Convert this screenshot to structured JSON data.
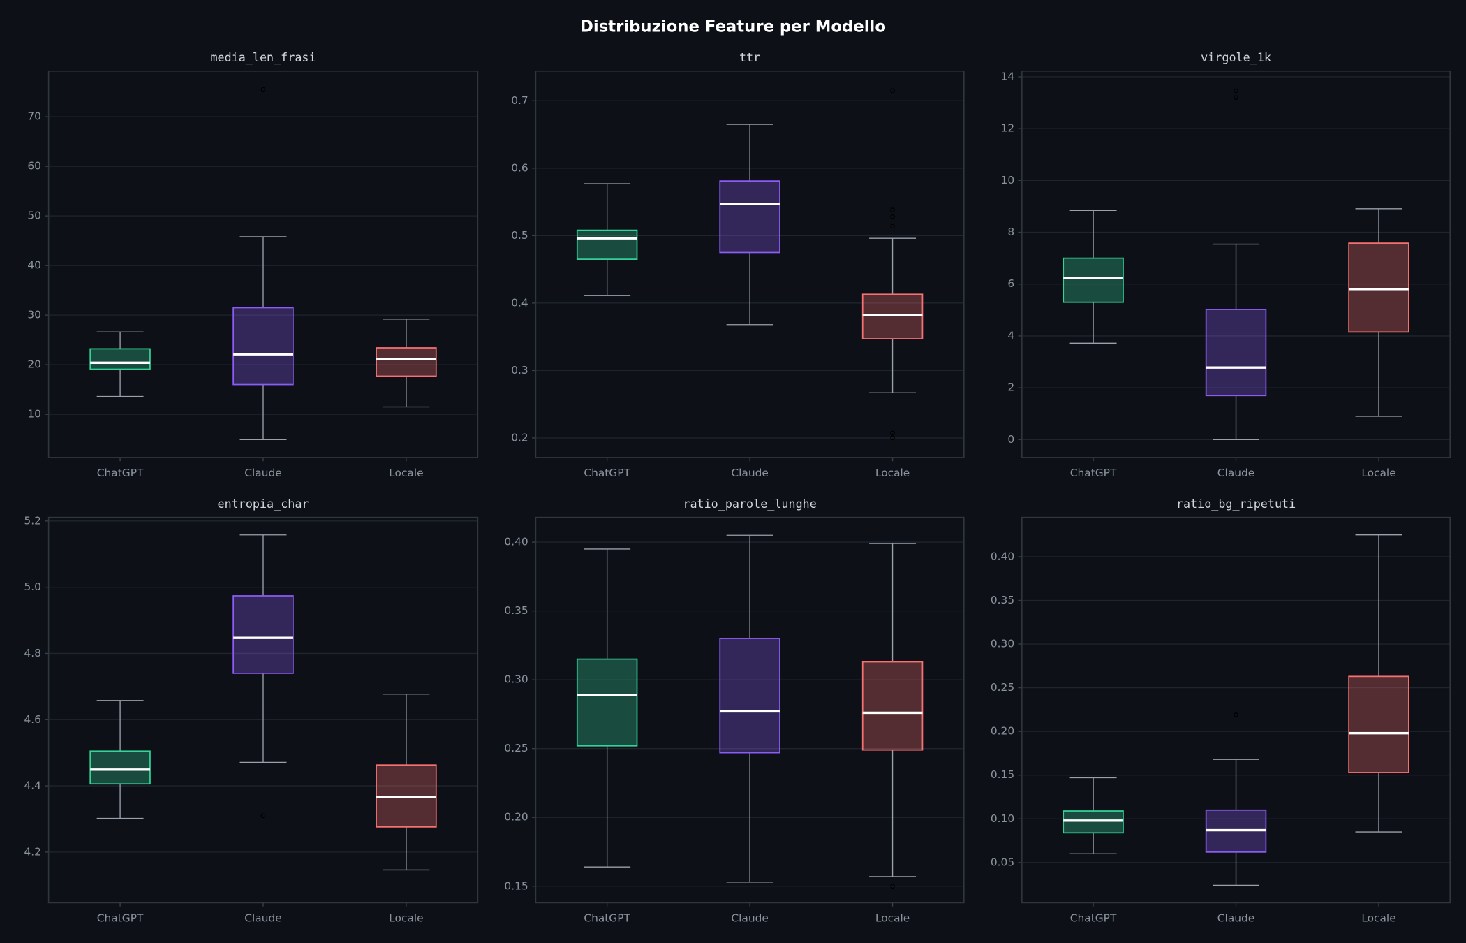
{
  "title": "Distribuzione Feature per Modello",
  "chart_data": [
    {
      "type": "box",
      "title": "media_len_frasi",
      "categories": [
        "ChatGPT",
        "Claude",
        "Locale"
      ],
      "colors": [
        "#34d399",
        "#8b5cf6",
        "#f87171"
      ],
      "boxes": [
        {
          "whislo": 13.6,
          "q1": 19.1,
          "med": 20.4,
          "q3": 23.2,
          "whishi": 26.6
        },
        {
          "whislo": 4.9,
          "q1": 16.0,
          "med": 22.1,
          "q3": 31.5,
          "whishi": 45.8,
          "fliers": [
            75.5
          ]
        },
        {
          "whislo": 11.5,
          "q1": 17.7,
          "med": 21.1,
          "q3": 23.4,
          "whishi": 29.2
        }
      ],
      "ylim": [
        1.3,
        79.2
      ],
      "yticks": [
        10,
        20,
        30,
        40,
        50,
        60,
        70
      ],
      "grid": true
    },
    {
      "type": "box",
      "title": "ttr",
      "categories": [
        "ChatGPT",
        "Claude",
        "Locale"
      ],
      "colors": [
        "#34d399",
        "#8b5cf6",
        "#f87171"
      ],
      "boxes": [
        {
          "whislo": 0.411,
          "q1": 0.465,
          "med": 0.496,
          "q3": 0.508,
          "whishi": 0.577
        },
        {
          "whislo": 0.368,
          "q1": 0.475,
          "med": 0.547,
          "q3": 0.581,
          "whishi": 0.665
        },
        {
          "whislo": 0.267,
          "q1": 0.347,
          "med": 0.382,
          "q3": 0.413,
          "whishi": 0.496,
          "fliers": [
            0.715,
            0.538,
            0.528,
            0.514,
            0.207,
            0.2
          ]
        }
      ],
      "ylim": [
        0.171,
        0.744
      ],
      "yticks": [
        0.2,
        0.3,
        0.4,
        0.5,
        0.6,
        0.7
      ],
      "grid": true
    },
    {
      "type": "box",
      "title": "virgole_1k",
      "categories": [
        "ChatGPT",
        "Claude",
        "Locale"
      ],
      "colors": [
        "#34d399",
        "#8b5cf6",
        "#f87171"
      ],
      "boxes": [
        {
          "whislo": 3.72,
          "q1": 5.3,
          "med": 6.24,
          "q3": 7.0,
          "whishi": 8.84
        },
        {
          "whislo": 0,
          "q1": 1.7,
          "med": 2.78,
          "q3": 5.02,
          "whishi": 7.54,
          "fliers": [
            13.46,
            13.2
          ]
        },
        {
          "whislo": 0.9,
          "q1": 4.15,
          "med": 5.81,
          "q3": 7.58,
          "whishi": 8.91
        }
      ],
      "ylim": [
        -0.69,
        14.22
      ],
      "yticks": [
        0,
        2,
        4,
        6,
        8,
        10,
        12,
        14
      ],
      "grid": true
    },
    {
      "type": "box",
      "title": "entropia_char",
      "categories": [
        "ChatGPT",
        "Claude",
        "Locale"
      ],
      "colors": [
        "#34d399",
        "#8b5cf6",
        "#f87171"
      ],
      "boxes": [
        {
          "whislo": 4.302,
          "q1": 4.406,
          "med": 4.449,
          "q3": 4.505,
          "whishi": 4.658
        },
        {
          "whislo": 4.471,
          "q1": 4.74,
          "med": 4.847,
          "q3": 4.974,
          "whishi": 5.158,
          "fliers": [
            4.31
          ]
        },
        {
          "whislo": 4.146,
          "q1": 4.276,
          "med": 4.367,
          "q3": 4.463,
          "whishi": 4.677
        }
      ],
      "ylim": [
        4.047,
        5.211
      ],
      "yticks": [
        4.2,
        4.4,
        4.6,
        4.8,
        {
          "value": 5,
          "label": "5.0"
        },
        5.2
      ],
      "grid": true
    },
    {
      "type": "box",
      "title": "ratio_parole_lunghe",
      "categories": [
        "ChatGPT",
        "Claude",
        "Locale"
      ],
      "colors": [
        "#34d399",
        "#8b5cf6",
        "#f87171"
      ],
      "boxes": [
        {
          "whislo": 0.164,
          "q1": 0.252,
          "med": 0.289,
          "q3": 0.315,
          "whishi": 0.395
        },
        {
          "whislo": 0.153,
          "q1": 0.247,
          "med": 0.277,
          "q3": 0.33,
          "whishi": 0.405
        },
        {
          "whislo": 0.157,
          "q1": 0.249,
          "med": 0.276,
          "q3": 0.313,
          "whishi": 0.399,
          "fliers": [
            0.15
          ]
        }
      ],
      "ylim": [
        0.138,
        0.418
      ],
      "yticks": [
        0.15,
        {
          "value": 0.2,
          "label": "0.20"
        },
        0.25,
        {
          "value": 0.3,
          "label": "0.30"
        },
        0.35,
        {
          "value": 0.4,
          "label": "0.40"
        }
      ],
      "grid": true
    },
    {
      "type": "box",
      "title": "ratio_bg_ripetuti",
      "categories": [
        "ChatGPT",
        "Claude",
        "Locale"
      ],
      "colors": [
        "#34d399",
        "#8b5cf6",
        "#f87171"
      ],
      "boxes": [
        {
          "whislo": 0.06,
          "q1": 0.084,
          "med": 0.098,
          "q3": 0.109,
          "whishi": 0.147
        },
        {
          "whislo": 0.024,
          "q1": 0.062,
          "med": 0.087,
          "q3": 0.11,
          "whishi": 0.168,
          "fliers": [
            0.219
          ]
        },
        {
          "whislo": 0.085,
          "q1": 0.153,
          "med": 0.198,
          "q3": 0.263,
          "whishi": 0.425
        }
      ],
      "ylim": [
        0.004,
        0.445
      ],
      "yticks": [
        0.05,
        {
          "value": 0.1,
          "label": "0.10"
        },
        0.15,
        {
          "value": 0.2,
          "label": "0.20"
        },
        0.25,
        {
          "value": 0.3,
          "label": "0.30"
        },
        0.35,
        {
          "value": 0.4,
          "label": "0.40"
        }
      ],
      "grid": true
    }
  ]
}
